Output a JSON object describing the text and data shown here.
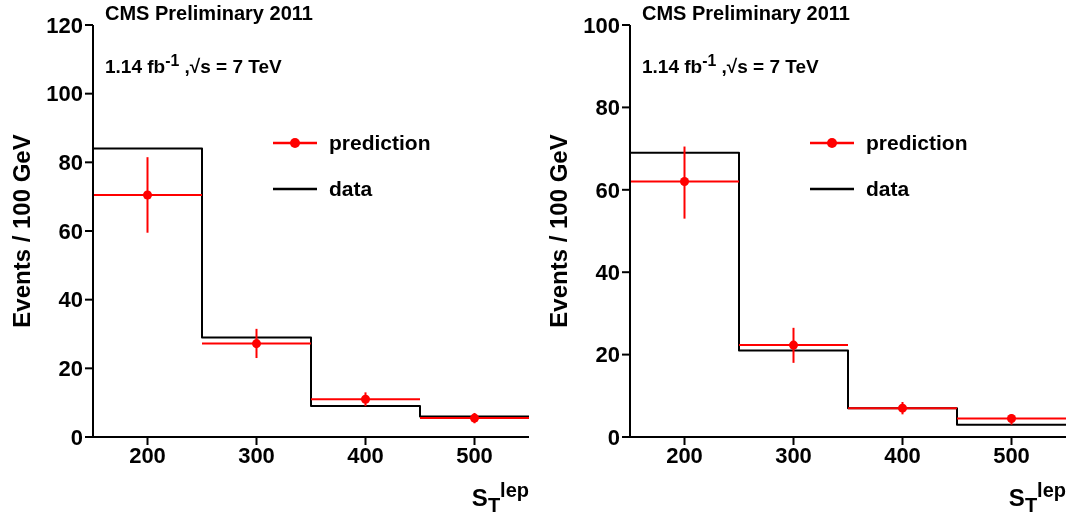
{
  "chart_data": [
    {
      "type": "scatter",
      "title": "CMS Preliminary 2011",
      "annotations": [
        "1.14 fb$^{-1}$ ,√s = 7 TeV"
      ],
      "xlabel": "S$_{T}$$^{lep}$",
      "ylabel": "Events / 100 GeV",
      "xlim": [
        150,
        550
      ],
      "xticks": [
        200,
        300,
        400,
        500
      ],
      "ylim": [
        0,
        120
      ],
      "yticks": [
        0,
        20,
        40,
        60,
        80,
        100,
        120
      ],
      "grid": false,
      "legend": "top right",
      "marker": "circle",
      "series": [
        {
          "name": "prediction",
          "color": "#ff0000",
          "x": [
            200,
            300,
            400,
            500
          ],
          "values": [
            70.5,
            27.2,
            11,
            5.5
          ],
          "errors": [
            [
              59.5,
              81.5
            ],
            [
              23,
              31.5
            ],
            [
              9,
              13
            ],
            [
              4,
              7
            ]
          ],
          "xerrors": [
            50,
            50,
            50,
            50
          ]
        },
        {
          "type": "histogram",
          "name": "data",
          "color": "#000000",
          "bins": [
            150,
            250,
            350,
            450,
            550
          ],
          "values": [
            84,
            29,
            9,
            6
          ]
        }
      ]
    },
    {
      "type": "scatter",
      "title": "CMS Preliminary 2011",
      "annotations": [
        "1.14 fb$^{-1}$ ,√s = 7 TeV"
      ],
      "xlabel": "S$_{T}$$^{lep}$",
      "ylabel": "Events / 100 GeV",
      "xlim": [
        150,
        550
      ],
      "xticks": [
        200,
        300,
        400,
        500
      ],
      "ylim": [
        0,
        100
      ],
      "yticks": [
        0,
        20,
        40,
        60,
        80,
        100
      ],
      "grid": false,
      "legend": "top right",
      "marker": "circle",
      "series": [
        {
          "name": "prediction",
          "color": "#ff0000",
          "x": [
            200,
            300,
            400,
            500
          ],
          "values": [
            62,
            22.3,
            7,
            4.5
          ],
          "errors": [
            [
              53,
              70.5
            ],
            [
              18,
              26.5
            ],
            [
              5.5,
              8.5
            ],
            [
              3,
              5.5
            ]
          ],
          "xerrors": [
            50,
            50,
            50,
            50
          ]
        },
        {
          "type": "histogram",
          "name": "data",
          "color": "#000000",
          "bins": [
            150,
            250,
            350,
            450,
            550
          ],
          "values": [
            69,
            21,
            7,
            3
          ]
        }
      ]
    }
  ]
}
